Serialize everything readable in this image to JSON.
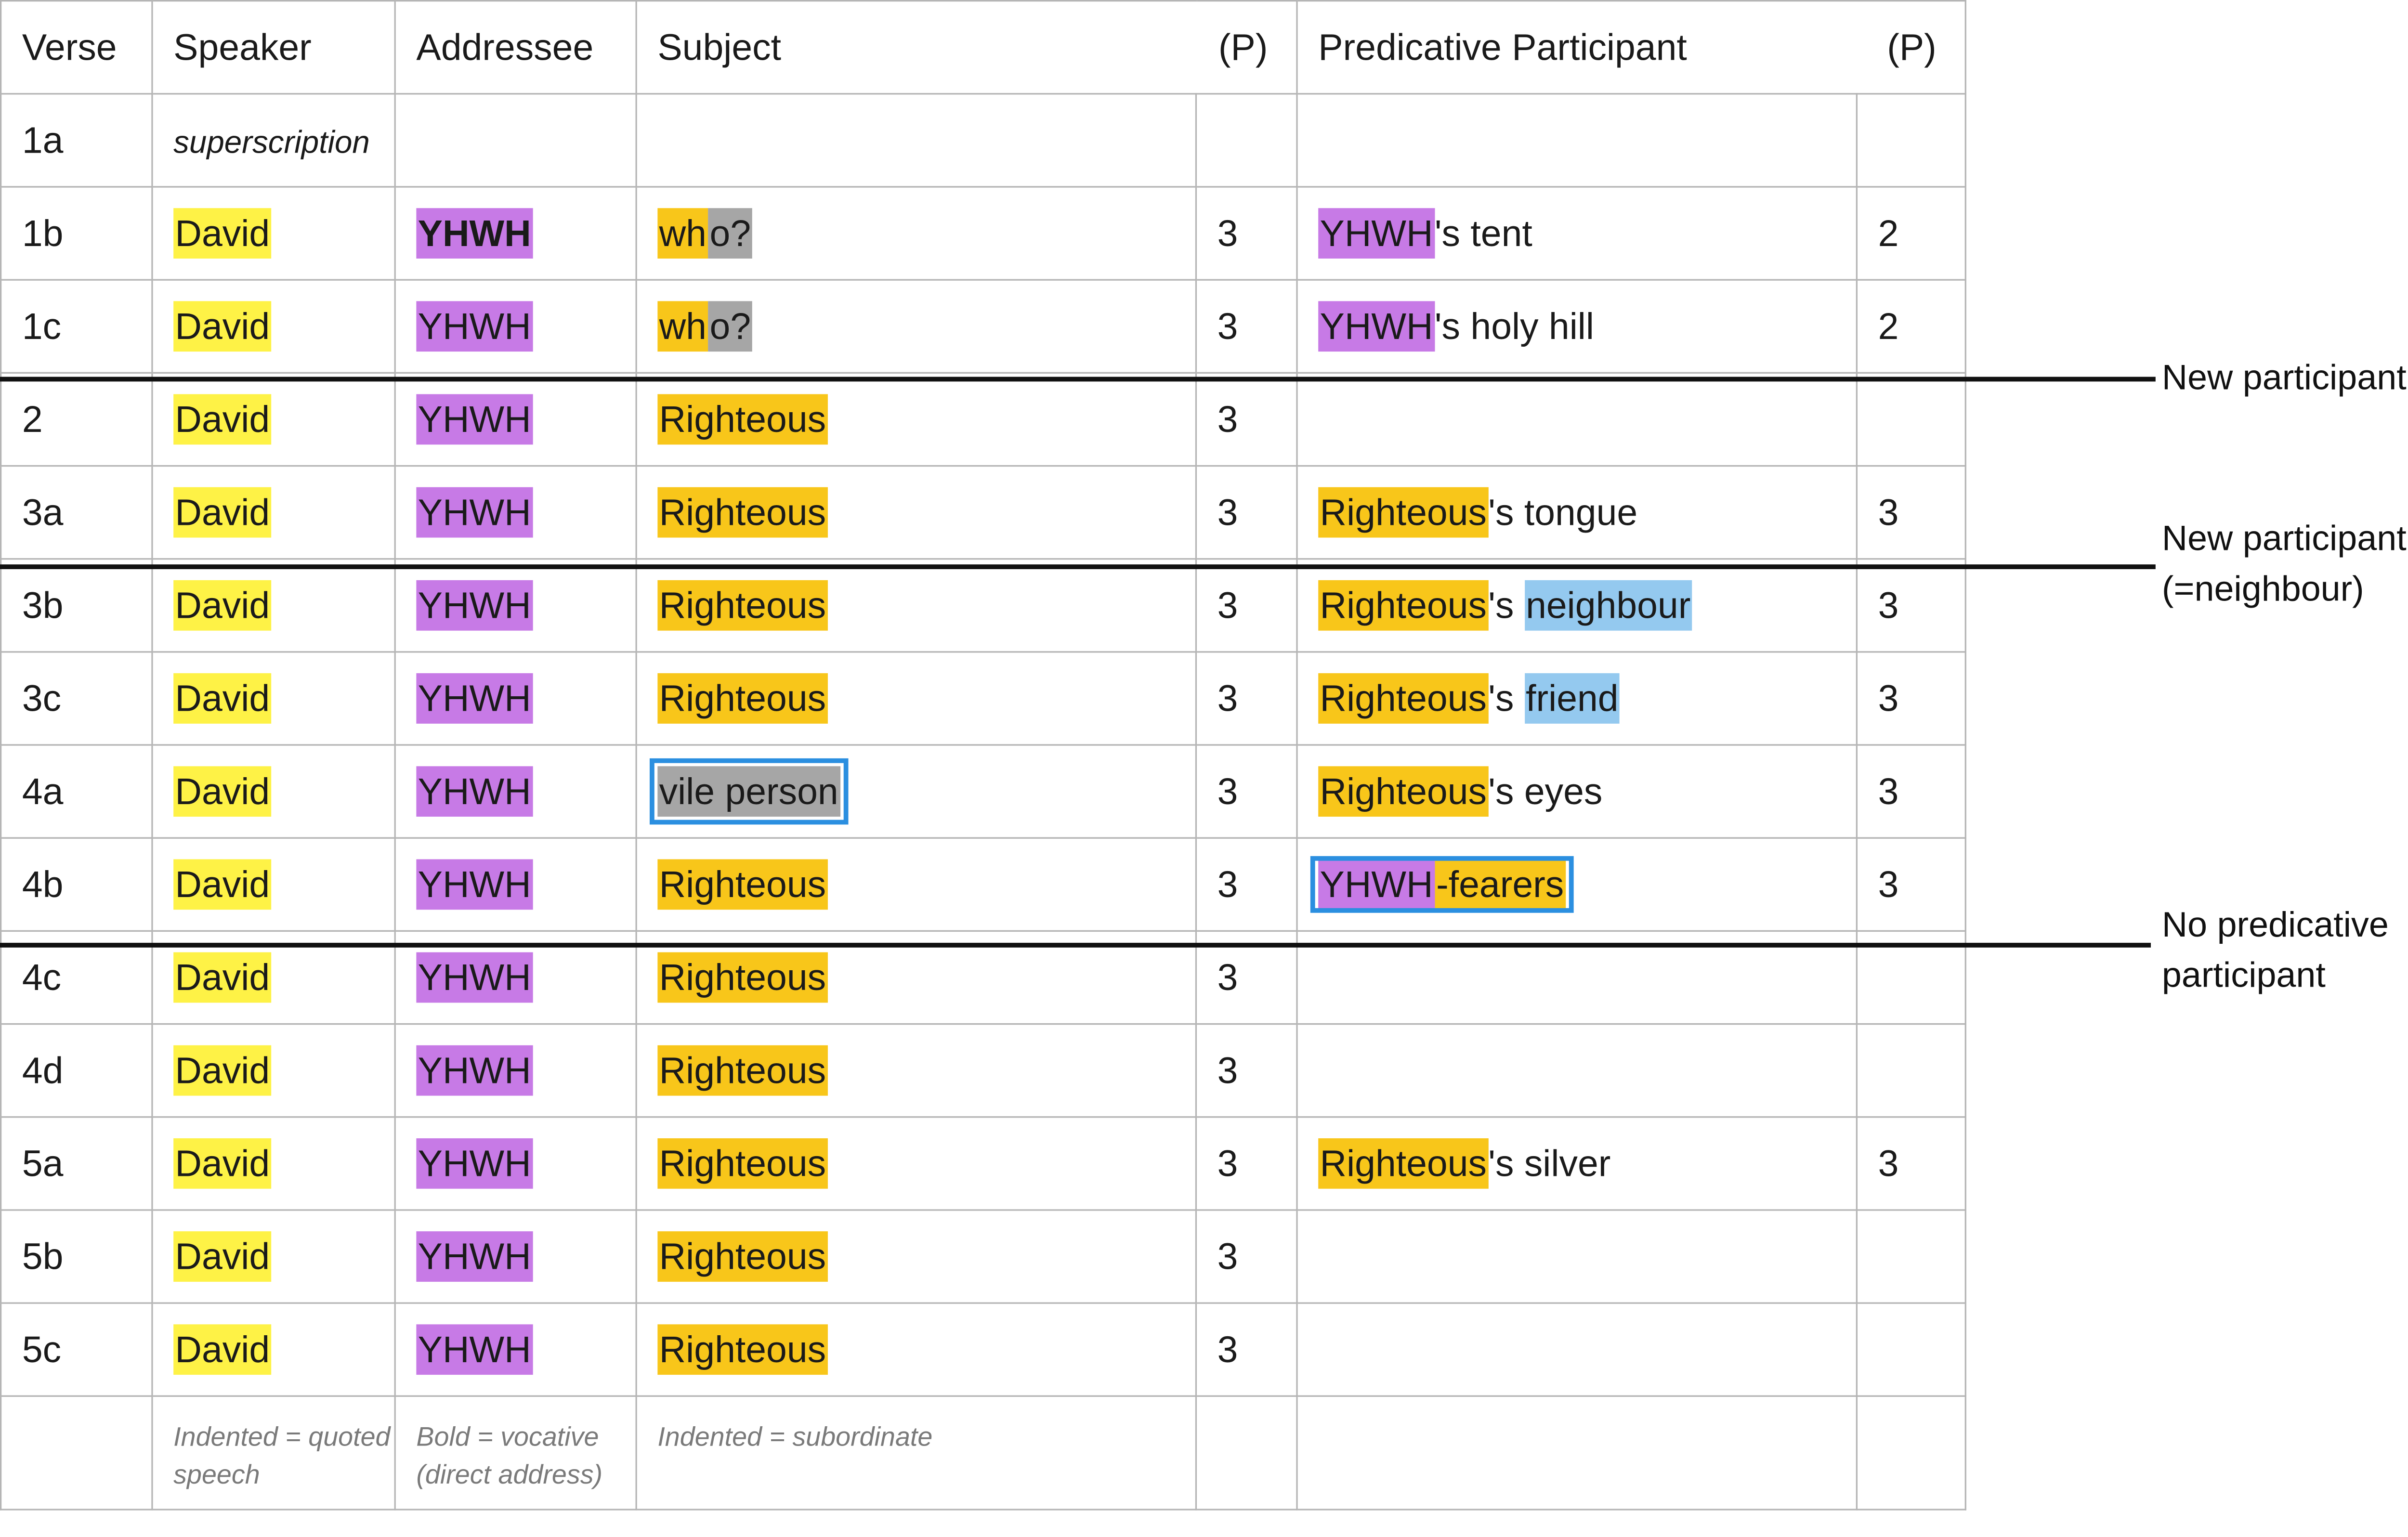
{
  "headers": {
    "verse": "Verse",
    "speaker": "Speaker",
    "addressee": "Addressee",
    "subject": "Subject",
    "subject_p": "(P)",
    "predicative": "Predicative Participant",
    "predicative_p": "(P)"
  },
  "rows": [
    {
      "verse": "1a",
      "speaker": "superscription",
      "addressee": "",
      "subject": "",
      "subject_p": "",
      "pred": "",
      "pred_p": ""
    },
    {
      "verse": "1b",
      "speaker": "David",
      "addressee": "YHWH",
      "subject_a": "wh",
      "subject_b": "o?",
      "subject_p": "3",
      "pred_a": "YHWH",
      "pred_b": "'s tent",
      "pred_p": "2"
    },
    {
      "verse": "1c",
      "speaker": "David",
      "addressee": "YHWH",
      "subject_a": "wh",
      "subject_b": "o?",
      "subject_p": "3",
      "pred_a": "YHWH",
      "pred_b": "'s holy hill",
      "pred_p": "2"
    },
    {
      "verse": "2",
      "speaker": "David",
      "addressee": "YHWH",
      "subject": "Righteous",
      "subject_p": "3",
      "pred_p": ""
    },
    {
      "verse": "3a",
      "speaker": "David",
      "addressee": "YHWH",
      "subject": "Righteous",
      "subject_p": "3",
      "pred_a": "Righteous",
      "pred_b": "'s tongue",
      "pred_p": "3"
    },
    {
      "verse": "3b",
      "speaker": "David",
      "addressee": "YHWH",
      "subject": "Righteous",
      "subject_p": "3",
      "pred_a": "Righteous",
      "pred_b": "'s ",
      "pred_c": "neighbour",
      "pred_p": "3"
    },
    {
      "verse": "3c",
      "speaker": "David",
      "addressee": "YHWH",
      "subject": "Righteous",
      "subject_p": "3",
      "pred_a": "Righteous",
      "pred_b": "'s ",
      "pred_c": "friend",
      "pred_p": "3"
    },
    {
      "verse": "4a",
      "speaker": "David",
      "addressee": "YHWH",
      "subject": "vile person",
      "subject_p": "3",
      "pred_a": "Righteous",
      "pred_b": "'s eyes",
      "pred_p": "3"
    },
    {
      "verse": "4b",
      "speaker": "David",
      "addressee": "YHWH",
      "subject": "Righteous",
      "subject_p": "3",
      "pred_a": "YHWH",
      "pred_b": "-fearers",
      "pred_p": "3"
    },
    {
      "verse": "4c",
      "speaker": "David",
      "addressee": "YHWH",
      "subject": "Righteous",
      "subject_p": "3",
      "pred_p": ""
    },
    {
      "verse": "4d",
      "speaker": "David",
      "addressee": "YHWH",
      "subject": "Righteous",
      "subject_p": "3",
      "pred_p": ""
    },
    {
      "verse": "5a",
      "speaker": "David",
      "addressee": "YHWH",
      "subject": "Righteous",
      "subject_p": "3",
      "pred_a": "Righteous",
      "pred_b": "'s silver",
      "pred_p": "3"
    },
    {
      "verse": "5b",
      "speaker": "David",
      "addressee": "YHWH",
      "subject": "Righteous",
      "subject_p": "3",
      "pred_p": ""
    },
    {
      "verse": "5c",
      "speaker": "David",
      "addressee": "YHWH",
      "subject": "Righteous",
      "subject_p": "3",
      "pred_p": ""
    }
  ],
  "legend": {
    "speaker": "Indented = quoted speech",
    "addressee": "Bold = vocative (direct address)",
    "subject": "Indented = subordinate"
  },
  "annotations": {
    "a1": "New participant",
    "a2_line1": "New participant",
    "a2_line2": "(=neighbour)",
    "a3_line1": "No predicative",
    "a3_line2": "participant"
  },
  "colors": {
    "speaker": "#fef246",
    "yhwh": "#c77ae6",
    "righteous": "#f8c61a",
    "gray": "#a6a6a6",
    "neighbour": "#94c9ef",
    "frame": "#2b8fe0"
  }
}
